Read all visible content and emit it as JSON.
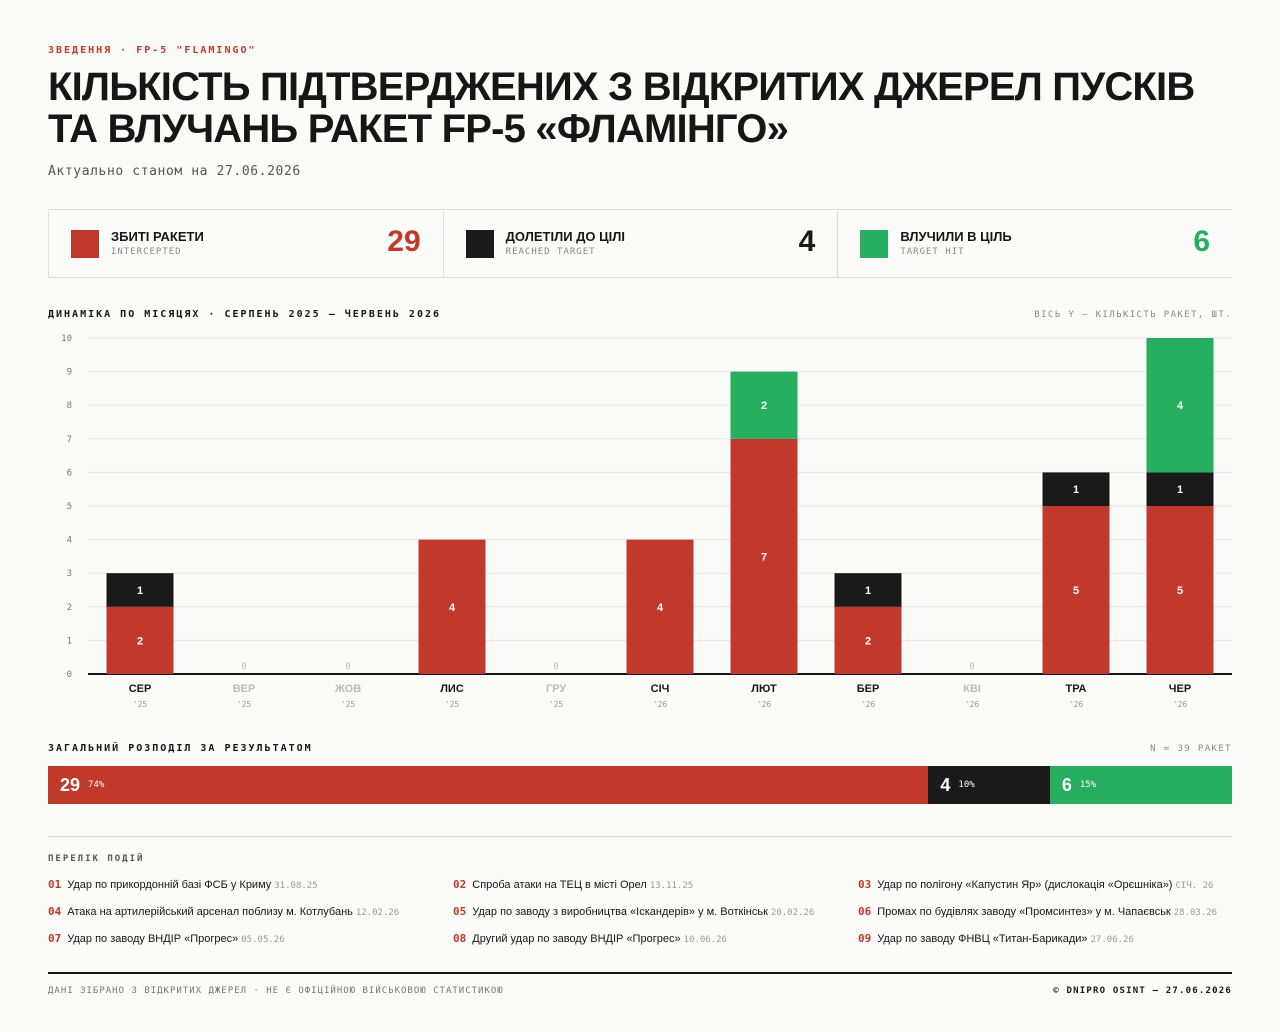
{
  "header": {
    "eyebrow": "ЗВЕДЕННЯ · FP-5 \"FLAMINGO\"",
    "title": "КІЛЬКІСТЬ ПІДТВЕРДЖЕНИХ З ВІДКРИТИХ ДЖЕРЕЛ ПУСКІВ ТА ВЛУЧАНЬ РАКЕТ FP-5 «ФЛАМІНГО»",
    "subtitle": "Актуально станом на 27.06.2026"
  },
  "colors": {
    "intercepted": "#c0392b",
    "reached": "#1a1a1a",
    "hit": "#27ae60",
    "zero": "#bbbbbb"
  },
  "legend": [
    {
      "label": "ЗБИТІ РАКЕТИ",
      "sub": "INTERCEPTED",
      "value": "29"
    },
    {
      "label": "ДОЛЕТІЛИ ДО ЦІЛІ",
      "sub": "REACHED TARGET",
      "value": "4"
    },
    {
      "label": "ВЛУЧИЛИ В ЦІЛЬ",
      "sub": "TARGET HIT",
      "value": "6"
    }
  ],
  "chart_section": {
    "title": "ДИНАМІКА ПО МІСЯЦЯХ · СЕРПЕНЬ 2025 — ЧЕРВЕНЬ 2026",
    "axis_note": "ВІСЬ Y — КІЛЬКІСТЬ РАКЕТ, ШТ."
  },
  "chart_data": {
    "type": "bar",
    "stacked": true,
    "categories": [
      "СЕР",
      "ВЕР",
      "ЖОВ",
      "ЛИС",
      "ГРУ",
      "СІЧ",
      "ЛЮТ",
      "БЕР",
      "КВІ",
      "ТРА",
      "ЧЕР"
    ],
    "years": [
      "'25",
      "'25",
      "'25",
      "'25",
      "'25",
      "'26",
      "'26",
      "'26",
      "'26",
      "'26",
      "'26"
    ],
    "series": [
      {
        "values": [
          2,
          0,
          0,
          4,
          0,
          4,
          7,
          2,
          0,
          5,
          5
        ]
      },
      {
        "values": [
          1,
          0,
          0,
          0,
          0,
          0,
          0,
          1,
          0,
          1,
          1
        ]
      },
      {
        "values": [
          0,
          0,
          0,
          0,
          0,
          0,
          2,
          0,
          0,
          0,
          4
        ]
      }
    ],
    "ylim": [
      0,
      10
    ],
    "yticks": [
      0,
      1,
      2,
      3,
      4,
      5,
      6,
      7,
      8,
      9,
      10
    ],
    "grid": true
  },
  "distribution": {
    "title": "ЗАГАЛЬНИЙ РОЗПОДІЛ ЗА РЕЗУЛЬТАТОМ",
    "total_note": "N = 39 РАКЕТ",
    "segments": [
      {
        "value": "29",
        "pct": "74%",
        "share": 29
      },
      {
        "value": "4",
        "pct": "10%",
        "share": 4
      },
      {
        "value": "6",
        "pct": "15%",
        "share": 6
      }
    ]
  },
  "events": {
    "title": "ПЕРЕЛІК ПОДІЙ",
    "items": [
      {
        "no": "01",
        "text": "Удар по прикордонній базі ФСБ у Криму",
        "date": "31.08.25"
      },
      {
        "no": "02",
        "text": "Спроба атаки на ТЕЦ в місті Орел",
        "date": "13.11.25"
      },
      {
        "no": "03",
        "text": "Удар по полігону «Капустин Яр» (дислокація «Орєшніка»)",
        "date": "СІЧ. 26"
      },
      {
        "no": "04",
        "text": "Атака на артилерійський арсенал поблизу м. Котлубань",
        "date": "12.02.26"
      },
      {
        "no": "05",
        "text": "Удар по заводу з виробництва «Іскандерів» у м. Воткінськ",
        "date": "20.02.26"
      },
      {
        "no": "06",
        "text": "Промах по будівлях заводу «Промсинтез» у м. Чапаєвськ",
        "date": "28.03.26"
      },
      {
        "no": "07",
        "text": "Удар по заводу ВНДІР «Прогрес»",
        "date": "05.05.26"
      },
      {
        "no": "08",
        "text": "Другий удар по заводу ВНДІР «Прогрес»",
        "date": "10.06.26"
      },
      {
        "no": "09",
        "text": "Удар по заводу ФНВЦ «Титан-Барикади»",
        "date": "27.06.26"
      }
    ]
  },
  "footer": {
    "left": "ДАНІ ЗІБРАНО З ВІДКРИТИХ ДЖЕРЕЛ · НЕ Є ОФІЦІЙНОЮ ВІЙСЬКОВОЮ СТАТИСТИКОЮ",
    "right": "© DNIPRO OSINT — 27.06.2026"
  }
}
